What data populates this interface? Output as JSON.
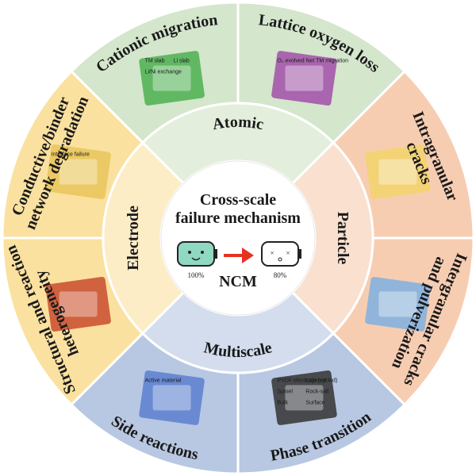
{
  "center": {
    "title_lines": [
      "Cross-scale",
      "failure mechanism"
    ],
    "start_percent": "100%",
    "end_percent": "80%",
    "label": "NCM"
  },
  "scales": [
    {
      "label": "Atomic"
    },
    {
      "label": "Particle"
    },
    {
      "label": "Multiscale"
    },
    {
      "label": "Electrode"
    }
  ],
  "mechanisms": [
    {
      "lines": [
        "Cationic migration"
      ],
      "annotations": [
        "TM slab",
        "Li slab",
        "Li/Ni exchange"
      ]
    },
    {
      "lines": [
        "Lattice oxygen loss"
      ],
      "annotations": [
        "O₂ evolved",
        "Net TM migration"
      ]
    },
    {
      "lines": [
        "Intragranular",
        "cracks"
      ],
      "annotations": []
    },
    {
      "lines": [
        "Intergranular cracks",
        "and pulverization"
      ],
      "annotations": []
    },
    {
      "lines": [
        "Phase transition"
      ],
      "annotations": [
        "PVDF electrode (cycled)",
        "Layered",
        "Spinel",
        "Rock-salt",
        "Bulk",
        "Surface"
      ]
    },
    {
      "lines": [
        "Side reactions"
      ],
      "annotations": [
        "Active material"
      ]
    },
    {
      "lines": [
        "Structural and reaction",
        "heterogeneity"
      ],
      "annotations": []
    },
    {
      "lines": [
        "Conductive/binder",
        "network degradation"
      ],
      "annotations": [
        "Interface failure"
      ]
    }
  ]
}
